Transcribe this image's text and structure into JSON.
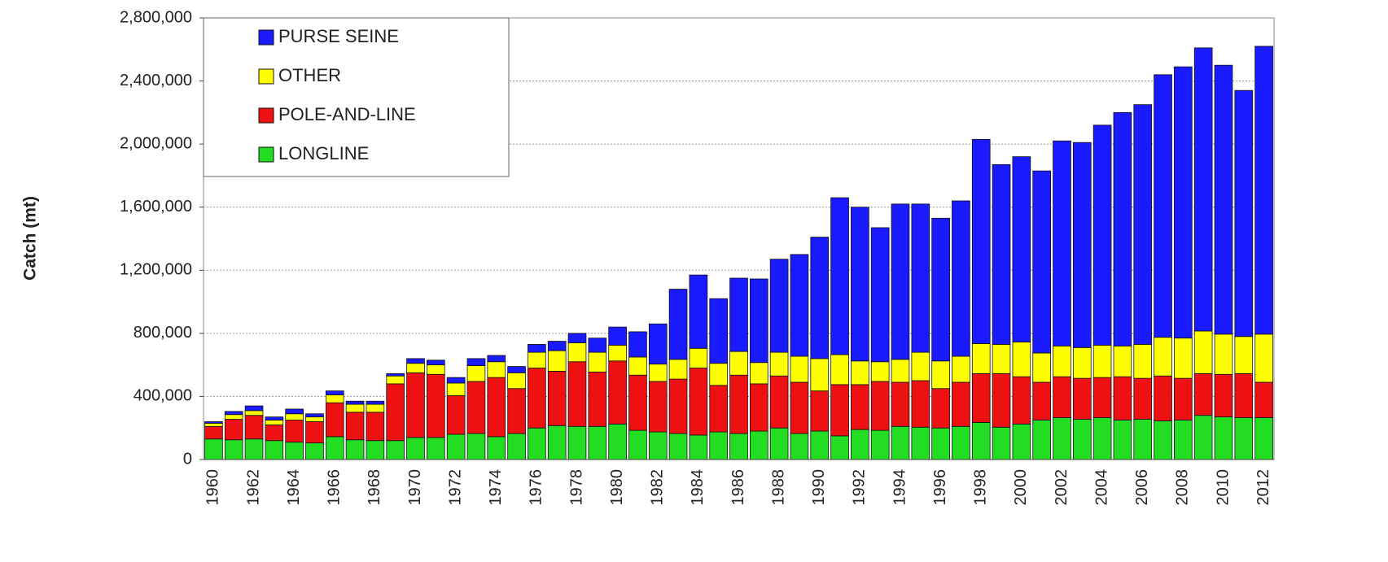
{
  "chart_data": {
    "type": "stacked_bar",
    "y_label": "Catch (mt)",
    "categories": [
      "1960",
      null,
      "1962",
      null,
      "1964",
      null,
      "1966",
      null,
      "1968",
      null,
      "1970",
      null,
      "1972",
      null,
      "1974",
      null,
      "1976",
      null,
      "1978",
      null,
      "1980",
      null,
      "1982",
      null,
      "1984",
      null,
      "1986",
      null,
      "1988",
      null,
      "1990",
      null,
      "1992",
      null,
      "1994",
      null,
      "1996",
      null,
      "1998",
      null,
      "2000",
      null,
      "2002",
      null,
      "2004",
      null,
      "2006",
      null,
      "2008",
      null,
      "2010",
      null,
      "2012"
    ],
    "series": [
      {
        "name": "LONGLINE",
        "color": "#22dd22",
        "values": [
          130000,
          125000,
          130000,
          120000,
          110000,
          105000,
          145000,
          125000,
          120000,
          120000,
          140000,
          140000,
          160000,
          165000,
          145000,
          165000,
          200000,
          215000,
          210000,
          210000,
          225000,
          185000,
          175000,
          165000,
          155000,
          175000,
          165000,
          180000,
          200000,
          165000,
          180000,
          150000,
          190000,
          185000,
          210000,
          205000,
          200000,
          210000,
          235000,
          205000,
          225000,
          250000,
          265000,
          255000,
          265000,
          250000,
          255000,
          245000,
          250000,
          280000,
          270000,
          265000,
          265000
        ]
      },
      {
        "name": "POLE-AND-LINE",
        "color": "#ee1111",
        "values": [
          80000,
          130000,
          150000,
          100000,
          140000,
          135000,
          215000,
          175000,
          180000,
          360000,
          410000,
          400000,
          245000,
          330000,
          375000,
          285000,
          380000,
          345000,
          410000,
          345000,
          400000,
          350000,
          320000,
          345000,
          425000,
          295000,
          370000,
          300000,
          330000,
          325000,
          255000,
          325000,
          285000,
          310000,
          280000,
          295000,
          250000,
          280000,
          310000,
          340000,
          300000,
          240000,
          260000,
          260000,
          255000,
          275000,
          260000,
          285000,
          265000,
          265000,
          270000,
          280000,
          225000
        ]
      },
      {
        "name": "OTHER",
        "color": "#ffff00",
        "values": [
          20000,
          30000,
          30000,
          30000,
          40000,
          30000,
          50000,
          50000,
          50000,
          50000,
          60000,
          60000,
          80000,
          100000,
          100000,
          100000,
          100000,
          130000,
          120000,
          125000,
          100000,
          115000,
          110000,
          125000,
          125000,
          140000,
          150000,
          135000,
          150000,
          165000,
          205000,
          190000,
          150000,
          125000,
          145000,
          180000,
          175000,
          165000,
          190000,
          185000,
          220000,
          185000,
          195000,
          195000,
          205000,
          195000,
          215000,
          245000,
          255000,
          270000,
          255000,
          235000,
          305000
        ]
      },
      {
        "name": "PURSE SEINE",
        "color": "#1a1aff",
        "values": [
          10000,
          20000,
          30000,
          20000,
          30000,
          20000,
          25000,
          20000,
          20000,
          15000,
          30000,
          30000,
          35000,
          45000,
          40000,
          40000,
          50000,
          60000,
          60000,
          90000,
          115000,
          160000,
          255000,
          445000,
          465000,
          410000,
          465000,
          530000,
          590000,
          645000,
          770000,
          995000,
          975000,
          850000,
          985000,
          940000,
          905000,
          985000,
          1295000,
          1140000,
          1175000,
          1155000,
          1300000,
          1300000,
          1395000,
          1480000,
          1520000,
          1665000,
          1720000,
          1795000,
          1705000,
          1560000,
          1825000
        ]
      }
    ],
    "ylim": [
      0,
      2800000
    ],
    "yticks": [
      0,
      {
        "value": 400000,
        "label": "400,000"
      },
      {
        "value": 800000,
        "label": "800,000"
      },
      {
        "value": 1200000,
        "label": "1,200,000"
      },
      {
        "value": 1600000,
        "label": "1,600,000"
      },
      {
        "value": 2000000,
        "label": "2,000,000"
      },
      {
        "value": 2400000,
        "label": "2,400,000"
      },
      {
        "value": 2800000,
        "label": "2,800,000"
      }
    ],
    "grid": true,
    "legend": "upper left"
  }
}
